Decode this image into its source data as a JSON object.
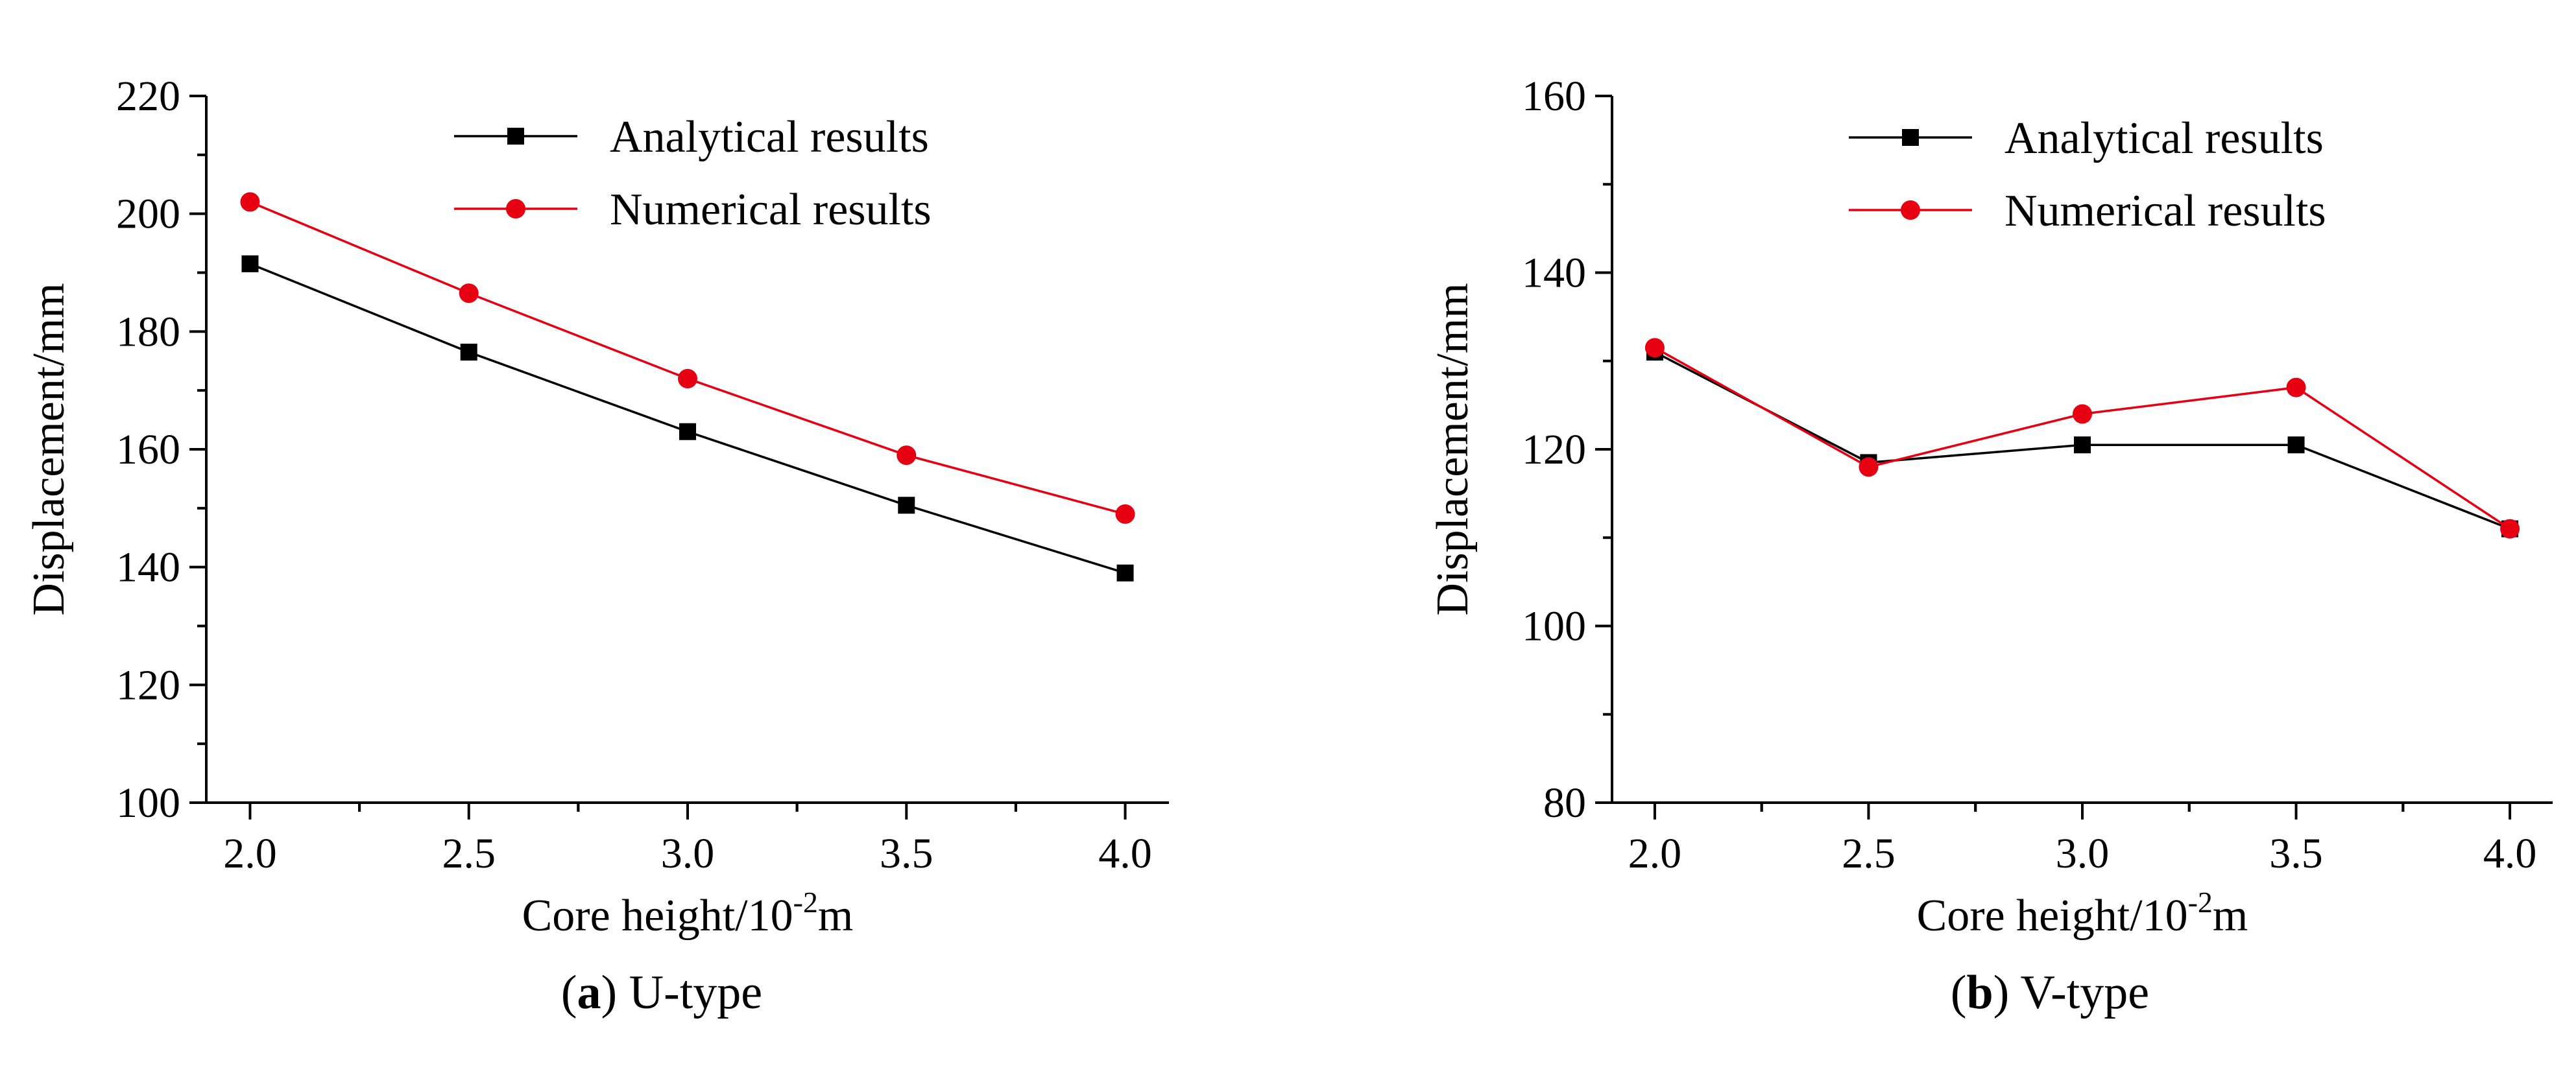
{
  "chart_data": [
    {
      "type": "line",
      "caption_letter": "a",
      "caption_rest": "U-type",
      "xlabel_main": "Core height/10",
      "xlabel_sup": "-2",
      "xlabel_unit": "m",
      "ylabel": "Displacement/mm",
      "xlim": [
        1.9,
        4.1
      ],
      "ylim": [
        100,
        220
      ],
      "x": [
        2.0,
        2.5,
        3.0,
        3.5,
        4.0
      ],
      "x_tick_labels": [
        "2.0",
        "2.5",
        "3.0",
        "3.5",
        "4.0"
      ],
      "y_tick_labels": [
        "100",
        "120",
        "140",
        "160",
        "180",
        "200",
        "220"
      ],
      "y_ticks": [
        100,
        120,
        140,
        160,
        180,
        200,
        220
      ],
      "legend_position": "top-center",
      "series": [
        {
          "name": "Analytical results",
          "color": "#000000",
          "marker": "square",
          "values": [
            191.5,
            176.5,
            163.0,
            150.5,
            139.0
          ]
        },
        {
          "name": "Numerical results",
          "color": "#e60012",
          "marker": "circle",
          "values": [
            202.0,
            186.5,
            172.0,
            159.0,
            149.0
          ]
        }
      ]
    },
    {
      "type": "line",
      "caption_letter": "b",
      "caption_rest": "V-type",
      "xlabel_main": "Core height/10",
      "xlabel_sup": "-2",
      "xlabel_unit": "m",
      "ylabel": "Displacement/mm",
      "xlim": [
        1.9,
        4.1
      ],
      "ylim": [
        80,
        160
      ],
      "x": [
        2.0,
        2.5,
        3.0,
        3.5,
        4.0
      ],
      "x_tick_labels": [
        "2.0",
        "2.5",
        "3.0",
        "3.5",
        "4.0"
      ],
      "y_tick_labels": [
        "80",
        "100",
        "120",
        "140",
        "160"
      ],
      "y_ticks": [
        80,
        100,
        120,
        140,
        160
      ],
      "legend_position": "top-center",
      "series": [
        {
          "name": "Analytical results",
          "color": "#000000",
          "marker": "square",
          "values": [
            131.0,
            118.5,
            120.5,
            120.5,
            111.0
          ]
        },
        {
          "name": "Numerical results",
          "color": "#e60012",
          "marker": "circle",
          "values": [
            131.5,
            118.0,
            124.0,
            127.0,
            111.0
          ]
        }
      ]
    }
  ]
}
